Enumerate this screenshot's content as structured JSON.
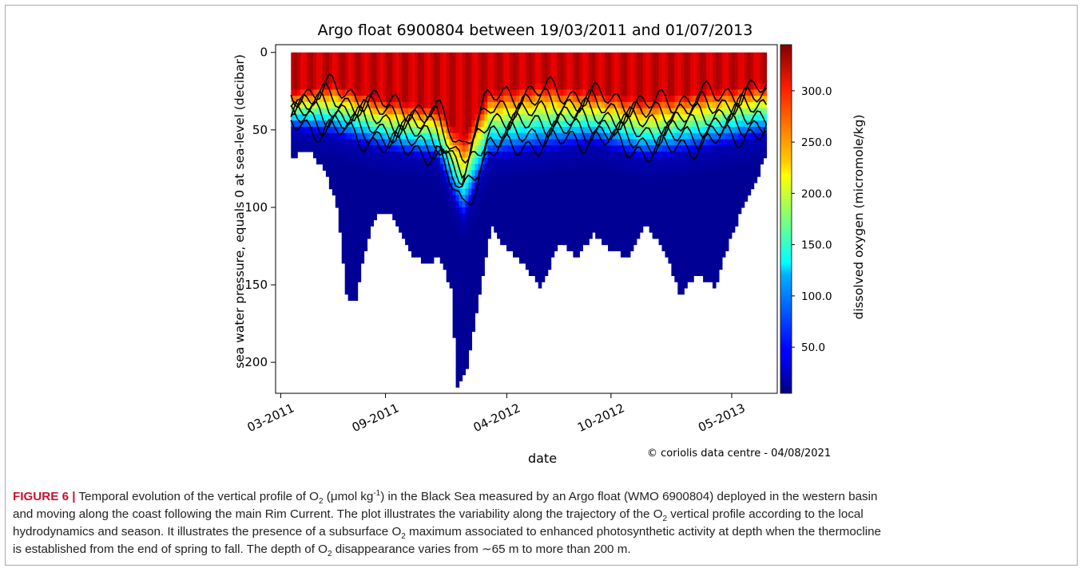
{
  "chart_data": {
    "type": "heatmap",
    "title": "Argo float 6900804 between 19/03/2011 and 01/07/2013",
    "xlabel": "date",
    "ylabel": "sea water pressure, equals 0 at sea-level (decibar)",
    "colorbar_label": "dissolved oxygen (micromole/kg)",
    "colorbar_ticks": [
      "50.0",
      "100.0",
      "150.0",
      "200.0",
      "250.0",
      "300.0"
    ],
    "colorbar_range": [
      5,
      345
    ],
    "colormap": "jet",
    "x_tick_labels": [
      "03-2011",
      "09-2011",
      "04-2012",
      "10-2012",
      "05-2013"
    ],
    "y_tick_labels": [
      "0",
      "50",
      "100",
      "150",
      "200"
    ],
    "ylim": [
      220,
      -5
    ],
    "y_inverted": true,
    "xlim": [
      "2011-02-20",
      "2013-07-20"
    ],
    "x_tick_dates": [
      "2011-03-01",
      "2011-09-01",
      "2012-04-01",
      "2012-10-01",
      "2013-05-01"
    ],
    "data_start": "2011-03-19",
    "data_end": "2013-07-01",
    "contours": "black isolines of dissolved oxygen",
    "profile_bottom_depth": [
      [
        "2011-03-19",
        65
      ],
      [
        "2011-04-20",
        62
      ],
      [
        "2011-05-15",
        72
      ],
      [
        "2011-06-10",
        100
      ],
      [
        "2011-06-25",
        155
      ],
      [
        "2011-07-10",
        160
      ],
      [
        "2011-07-25",
        130
      ],
      [
        "2011-08-10",
        105
      ],
      [
        "2011-09-10",
        100
      ],
      [
        "2011-10-10",
        125
      ],
      [
        "2011-11-10",
        135
      ],
      [
        "2011-12-05",
        130
      ],
      [
        "2011-12-25",
        150
      ],
      [
        "2012-01-05",
        215
      ],
      [
        "2012-01-20",
        205
      ],
      [
        "2012-02-10",
        160
      ],
      [
        "2012-03-05",
        110
      ],
      [
        "2012-04-01",
        125
      ],
      [
        "2012-05-01",
        135
      ],
      [
        "2012-06-01",
        150
      ],
      [
        "2012-07-01",
        120
      ],
      [
        "2012-08-01",
        130
      ],
      [
        "2012-09-01",
        115
      ],
      [
        "2012-10-01",
        125
      ],
      [
        "2012-11-01",
        130
      ],
      [
        "2012-12-01",
        110
      ],
      [
        "2013-01-01",
        125
      ],
      [
        "2013-02-01",
        155
      ],
      [
        "2013-03-01",
        140
      ],
      [
        "2013-04-01",
        150
      ],
      [
        "2013-05-01",
        115
      ],
      [
        "2013-06-01",
        90
      ],
      [
        "2013-07-01",
        65
      ]
    ],
    "oxygen_surface_value": 320,
    "oxycline_depth": [
      [
        "2011-03-19",
        25
      ],
      [
        "2011-06-01",
        20
      ],
      [
        "2011-09-01",
        30
      ],
      [
        "2011-12-01",
        35
      ],
      [
        "2012-01-15",
        55
      ],
      [
        "2012-03-01",
        25
      ],
      [
        "2012-06-01",
        20
      ],
      [
        "2012-09-01",
        25
      ],
      [
        "2012-12-01",
        30
      ],
      [
        "2013-03-01",
        25
      ],
      [
        "2013-07-01",
        20
      ]
    ],
    "anoxic_depth": [
      [
        "2011-03-19",
        50
      ],
      [
        "2011-06-01",
        55
      ],
      [
        "2011-09-01",
        65
      ],
      [
        "2011-12-01",
        70
      ],
      [
        "2012-01-15",
        110
      ],
      [
        "2012-03-01",
        70
      ],
      [
        "2012-06-01",
        65
      ],
      [
        "2012-09-01",
        60
      ],
      [
        "2012-12-01",
        70
      ],
      [
        "2013-03-01",
        65
      ],
      [
        "2013-07-01",
        55
      ]
    ]
  },
  "copyright": "© coriolis data centre - 04/08/2021",
  "caption": {
    "label": "FIGURE 6 |",
    "line1_a": " Temporal evolution of the vertical profile of O",
    "line1_b": " (",
    "line1_c": "mol kg",
    "line1_d": ") in the Black Sea measured by an Argo float (WMO 6900804) deployed in the western basin",
    "line2": "and moving along the coast following the main Rim Current. The plot illustrates the variability along the trajectory of the O",
    "line2_b": " vertical profile according to the local",
    "line3": "hydrodynamics and season. It illustrates the presence of a subsurface O",
    "line3_b": " maximum associated to enhanced photosynthetic activity at depth when the thermocline",
    "line4": "is established from the end of spring to fall. The depth of O",
    "line4_b": " disappearance varies from ∼65 m to more than 200 m.",
    "sub2": "2",
    "sup_neg1": "-1",
    "mu": "μ"
  }
}
